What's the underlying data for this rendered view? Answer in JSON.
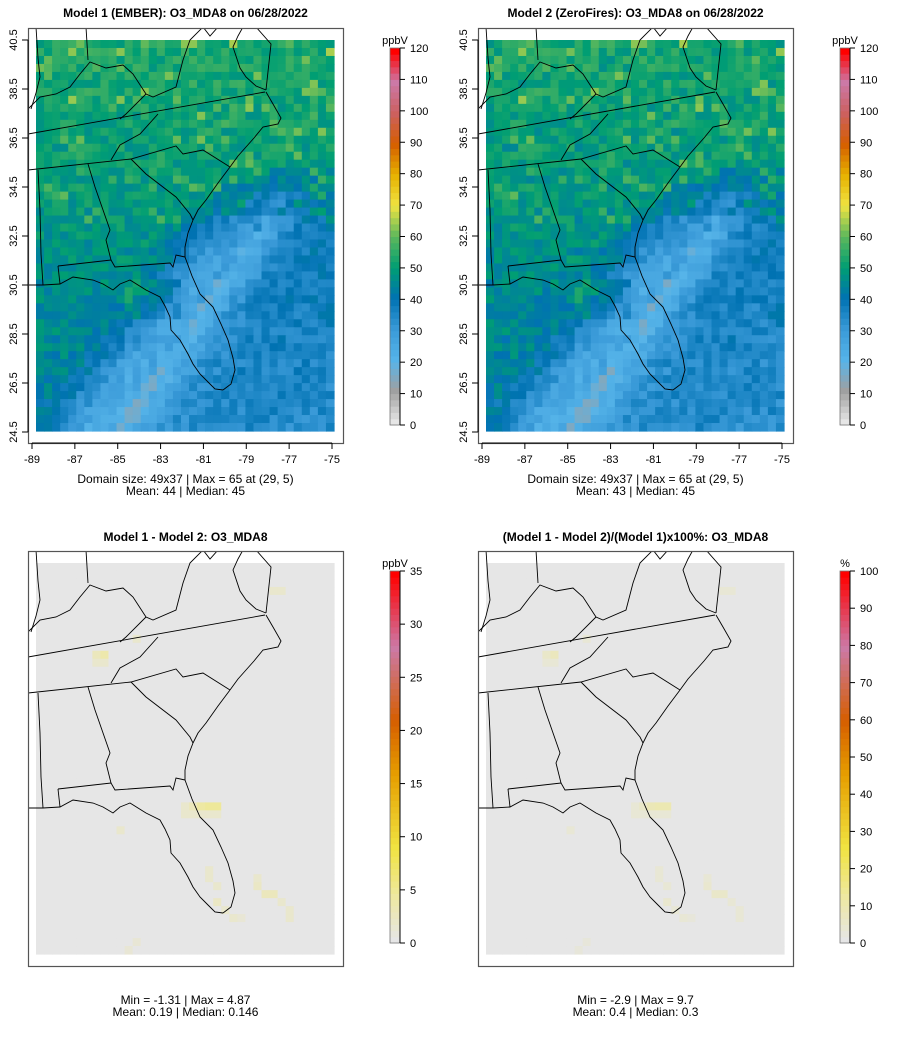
{
  "chart_data": [
    {
      "type": "heatmap",
      "title": "Model 1 (EMBER): O3_MDA8 on 06/28/2022",
      "field": "O3_MDA8",
      "date": "06/28/2022",
      "grid": "49x37",
      "show_axes": true,
      "lat_ticks": [
        "24.5",
        "26.5",
        "28.5",
        "30.5",
        "32.5",
        "34.5",
        "36.5",
        "38.5",
        "40.5"
      ],
      "lon_ticks": [
        "-89",
        "-87",
        "-85",
        "-83",
        "-81",
        "-79",
        "-77",
        "-75"
      ],
      "colorbar": {
        "unit": "ppbV",
        "min": 0,
        "max": 120,
        "ticks": [
          "0",
          "10",
          "20",
          "30",
          "40",
          "50",
          "60",
          "70",
          "80",
          "90",
          "100",
          "110",
          "120"
        ]
      },
      "stats_line1": "Domain size: 49x37 | Max = 65 at (29, 5)",
      "stats_line2": "Mean: 44 |  Median: 45",
      "max": 65,
      "mean": 44,
      "median": 45
    },
    {
      "type": "heatmap",
      "title": "Model 2 (ZeroFires): O3_MDA8 on 06/28/2022",
      "field": "O3_MDA8",
      "date": "06/28/2022",
      "grid": "49x37",
      "show_axes": true,
      "lat_ticks": [
        "24.5",
        "26.5",
        "28.5",
        "30.5",
        "32.5",
        "34.5",
        "36.5",
        "38.5",
        "40.5"
      ],
      "lon_ticks": [
        "-89",
        "-87",
        "-85",
        "-83",
        "-81",
        "-79",
        "-77",
        "-75"
      ],
      "colorbar": {
        "unit": "ppbV",
        "min": 0,
        "max": 120,
        "ticks": [
          "0",
          "10",
          "20",
          "30",
          "40",
          "50",
          "60",
          "70",
          "80",
          "90",
          "100",
          "110",
          "120"
        ]
      },
      "stats_line1": "Domain size: 49x37 | Max = 65 at (29, 5)",
      "stats_line2": "Mean: 43 |  Median: 45",
      "max": 65,
      "mean": 43,
      "median": 45
    },
    {
      "type": "heatmap",
      "title": "Model 1 - Model 2: O3_MDA8",
      "field": "O3_MDA8",
      "show_axes": false,
      "colorbar": {
        "unit": "ppbV",
        "min": 0,
        "max": 35,
        "ticks": [
          "0",
          "5",
          "10",
          "15",
          "20",
          "25",
          "30",
          "35"
        ]
      },
      "stats_line1": "Min = -1.31 | Max = 4.87",
      "stats_line2": "Mean: 0.19 |  Median: 0.146",
      "min": -1.31,
      "max": 4.87,
      "mean": 0.19,
      "median": 0.146
    },
    {
      "type": "heatmap",
      "title": "(Model 1 - Model 2)/(Model 1)x100%: O3_MDA8",
      "field": "O3_MDA8",
      "show_axes": false,
      "colorbar": {
        "unit": "%",
        "min": 0,
        "max": 100,
        "ticks": [
          "0",
          "10",
          "20",
          "30",
          "40",
          "50",
          "60",
          "70",
          "80",
          "90",
          "100"
        ]
      },
      "stats_line1": "Min = -2.9 | Max = 9.7",
      "stats_line2": "Mean: 0.4 |  Median: 0.3",
      "min": -2.9,
      "max": 9.7,
      "mean": 0.4,
      "median": 0.3
    }
  ],
  "colors": {
    "conc_scale": [
      "#e6e6e6",
      "#a0a0a0",
      "#56b4e9",
      "#3a9ad8",
      "#0072b2",
      "#009e73",
      "#5cb85c",
      "#f0e442",
      "#e6b000",
      "#d55e00",
      "#cc6060",
      "#cc79a7",
      "#ff0000"
    ],
    "diff_scale": [
      "#e6e6e6",
      "#eee8a0",
      "#f0e442",
      "#e69f00",
      "#d55e00",
      "#cc79a7",
      "#ff0000"
    ]
  }
}
